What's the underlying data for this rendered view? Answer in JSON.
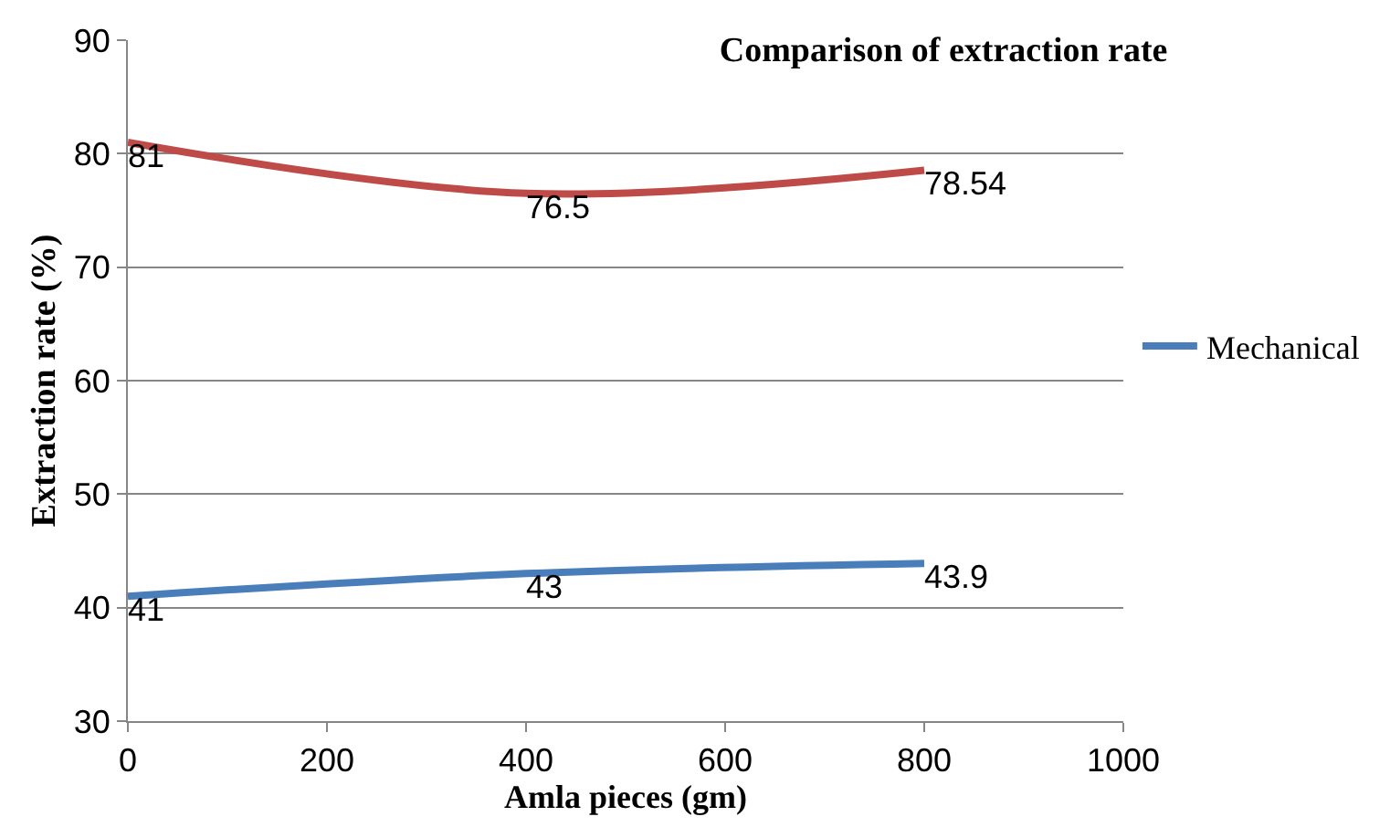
{
  "chart_data": {
    "type": "line",
    "title": "Comparison of extraction rate",
    "xlabel": "Amla pieces (gm)",
    "ylabel": "Extraction rate (%)",
    "x": [
      0,
      400,
      800
    ],
    "series": [
      {
        "name": "Mechanical",
        "color": "#4a7ebb",
        "values": [
          41,
          43,
          43.9
        ]
      },
      {
        "color": "#be4b48",
        "values": [
          81,
          76.5,
          78.54
        ]
      }
    ],
    "xlim": [
      0,
      1000
    ],
    "xticks": [
      0,
      200,
      400,
      600,
      800,
      1000
    ],
    "ylim": [
      30,
      90
    ],
    "yticks": [
      30,
      40,
      50,
      60,
      70,
      80,
      90
    ],
    "grid": "y",
    "legend": "right",
    "marker": "none",
    "line_style": "solid",
    "data_labels": true
  }
}
